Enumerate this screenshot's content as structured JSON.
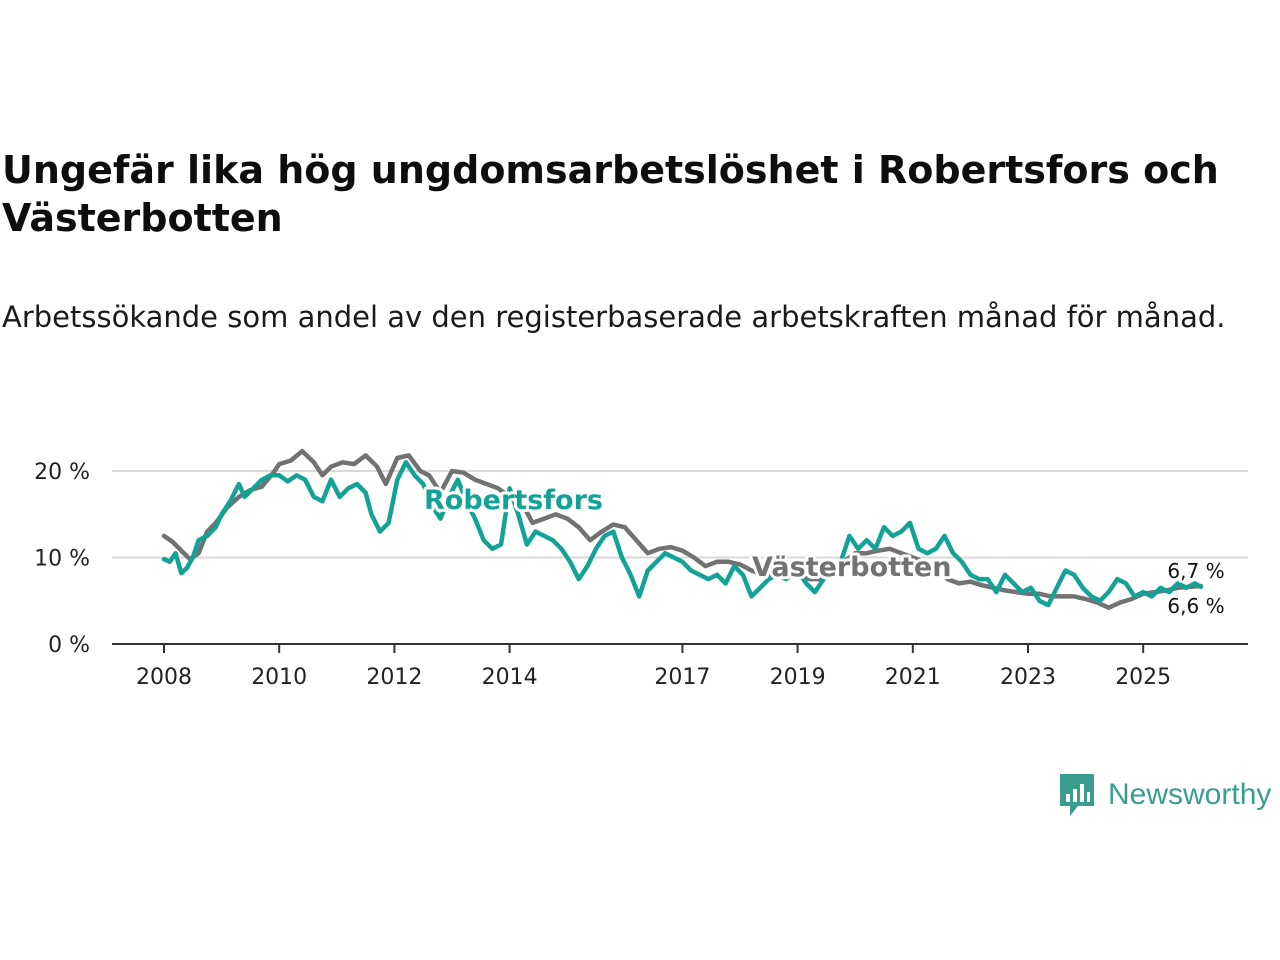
{
  "chart_data": {
    "type": "line",
    "title": "Ungefär lika hög ungdomsarbetslöshet i Robertsfors och Västerbotten",
    "subtitle": "Arbetssökande som andel av den registerbaserade arbetskraften månad för månad.",
    "xlabel": "",
    "ylabel": "",
    "ylim": [
      0,
      23
    ],
    "y_ticks": [
      {
        "value": 0,
        "label": "0 %"
      },
      {
        "value": 10,
        "label": "10 %"
      },
      {
        "value": 20,
        "label": "20 %"
      }
    ],
    "x_ticks": [
      {
        "value": 2008,
        "label": "2008"
      },
      {
        "value": 2010,
        "label": "2010"
      },
      {
        "value": 2012,
        "label": "2012"
      },
      {
        "value": 2014,
        "label": "2014"
      },
      {
        "value": 2017,
        "label": "2017"
      },
      {
        "value": 2019,
        "label": "2019"
      },
      {
        "value": 2021,
        "label": "2021"
      },
      {
        "value": 2023,
        "label": "2023"
      },
      {
        "value": 2025,
        "label": "2025"
      }
    ],
    "grid": true,
    "series": [
      {
        "name": "Västerbotten",
        "color": "#727272",
        "end_label": "6,7 %",
        "points": [
          [
            2008.0,
            12.5
          ],
          [
            2008.15,
            11.8
          ],
          [
            2008.3,
            10.8
          ],
          [
            2008.45,
            9.8
          ],
          [
            2008.6,
            10.5
          ],
          [
            2008.75,
            13.0
          ],
          [
            2008.9,
            14.0
          ],
          [
            2009.1,
            15.8
          ],
          [
            2009.3,
            17.0
          ],
          [
            2009.5,
            17.8
          ],
          [
            2009.7,
            18.2
          ],
          [
            2009.9,
            19.8
          ],
          [
            2010.0,
            20.8
          ],
          [
            2010.2,
            21.2
          ],
          [
            2010.4,
            22.3
          ],
          [
            2010.6,
            21.0
          ],
          [
            2010.75,
            19.5
          ],
          [
            2010.9,
            20.5
          ],
          [
            2011.1,
            21.0
          ],
          [
            2011.3,
            20.8
          ],
          [
            2011.5,
            21.8
          ],
          [
            2011.7,
            20.5
          ],
          [
            2011.85,
            18.5
          ],
          [
            2012.05,
            21.5
          ],
          [
            2012.25,
            21.8
          ],
          [
            2012.45,
            20.0
          ],
          [
            2012.6,
            19.5
          ],
          [
            2012.8,
            17.5
          ],
          [
            2013.0,
            20.0
          ],
          [
            2013.2,
            19.8
          ],
          [
            2013.4,
            19.0
          ],
          [
            2013.6,
            18.5
          ],
          [
            2013.8,
            18.0
          ],
          [
            2014.0,
            17.0
          ],
          [
            2014.2,
            16.5
          ],
          [
            2014.4,
            14.0
          ],
          [
            2014.6,
            14.5
          ],
          [
            2014.8,
            15.0
          ],
          [
            2015.0,
            14.5
          ],
          [
            2015.2,
            13.5
          ],
          [
            2015.4,
            12.0
          ],
          [
            2015.6,
            13.0
          ],
          [
            2015.8,
            13.8
          ],
          [
            2016.0,
            13.5
          ],
          [
            2016.2,
            12.0
          ],
          [
            2016.4,
            10.5
          ],
          [
            2016.6,
            11.0
          ],
          [
            2016.8,
            11.2
          ],
          [
            2017.0,
            10.8
          ],
          [
            2017.2,
            10.0
          ],
          [
            2017.4,
            9.0
          ],
          [
            2017.6,
            9.5
          ],
          [
            2017.8,
            9.5
          ],
          [
            2018.0,
            9.2
          ],
          [
            2018.2,
            8.5
          ],
          [
            2018.4,
            8.0
          ],
          [
            2018.6,
            8.0
          ],
          [
            2018.8,
            8.0
          ],
          [
            2019.0,
            7.8
          ],
          [
            2019.2,
            7.5
          ],
          [
            2019.4,
            7.5
          ],
          [
            2019.6,
            8.5
          ],
          [
            2019.8,
            9.5
          ],
          [
            2020.0,
            10.5
          ],
          [
            2020.2,
            10.5
          ],
          [
            2020.4,
            10.8
          ],
          [
            2020.6,
            11.0
          ],
          [
            2020.8,
            10.5
          ],
          [
            2021.0,
            10.0
          ],
          [
            2021.2,
            9.5
          ],
          [
            2021.4,
            9.0
          ],
          [
            2021.6,
            7.5
          ],
          [
            2021.8,
            7.0
          ],
          [
            2022.0,
            7.2
          ],
          [
            2022.2,
            6.8
          ],
          [
            2022.4,
            6.5
          ],
          [
            2022.6,
            6.2
          ],
          [
            2022.8,
            6.0
          ],
          [
            2023.0,
            5.8
          ],
          [
            2023.2,
            5.8
          ],
          [
            2023.4,
            5.5
          ],
          [
            2023.6,
            5.5
          ],
          [
            2023.8,
            5.5
          ],
          [
            2024.0,
            5.2
          ],
          [
            2024.2,
            4.8
          ],
          [
            2024.4,
            4.2
          ],
          [
            2024.6,
            4.8
          ],
          [
            2024.8,
            5.2
          ],
          [
            2025.0,
            5.8
          ],
          [
            2025.2,
            6.0
          ],
          [
            2025.4,
            6.2
          ],
          [
            2025.6,
            6.5
          ],
          [
            2025.8,
            6.6
          ],
          [
            2026.0,
            6.7
          ]
        ]
      },
      {
        "name": "Robertsfors",
        "color": "#13a396",
        "end_label": "6,6 %",
        "points": [
          [
            2008.0,
            9.8
          ],
          [
            2008.1,
            9.5
          ],
          [
            2008.2,
            10.5
          ],
          [
            2008.3,
            8.2
          ],
          [
            2008.4,
            8.8
          ],
          [
            2008.5,
            10.0
          ],
          [
            2008.6,
            12.0
          ],
          [
            2008.75,
            12.5
          ],
          [
            2008.9,
            13.5
          ],
          [
            2009.0,
            15.0
          ],
          [
            2009.15,
            16.5
          ],
          [
            2009.3,
            18.5
          ],
          [
            2009.4,
            17.0
          ],
          [
            2009.55,
            18.0
          ],
          [
            2009.7,
            19.0
          ],
          [
            2009.85,
            19.5
          ],
          [
            2010.0,
            19.5
          ],
          [
            2010.15,
            18.8
          ],
          [
            2010.3,
            19.5
          ],
          [
            2010.45,
            19.0
          ],
          [
            2010.6,
            17.0
          ],
          [
            2010.75,
            16.5
          ],
          [
            2010.9,
            19.0
          ],
          [
            2011.05,
            17.0
          ],
          [
            2011.2,
            18.0
          ],
          [
            2011.35,
            18.5
          ],
          [
            2011.5,
            17.5
          ],
          [
            2011.6,
            15.0
          ],
          [
            2011.75,
            13.0
          ],
          [
            2011.9,
            14.0
          ],
          [
            2012.05,
            19.0
          ],
          [
            2012.2,
            21.0
          ],
          [
            2012.35,
            19.5
          ],
          [
            2012.5,
            18.5
          ],
          [
            2012.65,
            16.0
          ],
          [
            2012.8,
            14.5
          ],
          [
            2012.95,
            17.0
          ],
          [
            2013.1,
            19.0
          ],
          [
            2013.25,
            16.5
          ],
          [
            2013.4,
            14.5
          ],
          [
            2013.55,
            12.0
          ],
          [
            2013.7,
            11.0
          ],
          [
            2013.85,
            11.5
          ],
          [
            2014.0,
            18.0
          ],
          [
            2014.15,
            15.0
          ],
          [
            2014.3,
            11.5
          ],
          [
            2014.45,
            13.0
          ],
          [
            2014.6,
            12.5
          ],
          [
            2014.75,
            12.0
          ],
          [
            2014.9,
            11.0
          ],
          [
            2015.05,
            9.5
          ],
          [
            2015.2,
            7.5
          ],
          [
            2015.35,
            9.0
          ],
          [
            2015.5,
            11.0
          ],
          [
            2015.65,
            12.5
          ],
          [
            2015.8,
            13.0
          ],
          [
            2015.95,
            10.0
          ],
          [
            2016.1,
            8.0
          ],
          [
            2016.25,
            5.5
          ],
          [
            2016.4,
            8.5
          ],
          [
            2016.55,
            9.5
          ],
          [
            2016.7,
            10.5
          ],
          [
            2016.85,
            10.0
          ],
          [
            2017.0,
            9.5
          ],
          [
            2017.15,
            8.5
          ],
          [
            2017.3,
            8.0
          ],
          [
            2017.45,
            7.5
          ],
          [
            2017.6,
            8.0
          ],
          [
            2017.75,
            7.0
          ],
          [
            2017.9,
            9.0
          ],
          [
            2018.05,
            8.0
          ],
          [
            2018.2,
            5.5
          ],
          [
            2018.35,
            6.5
          ],
          [
            2018.5,
            7.5
          ],
          [
            2018.65,
            8.0
          ],
          [
            2018.8,
            7.5
          ],
          [
            2019.0,
            8.5
          ],
          [
            2019.15,
            7.0
          ],
          [
            2019.3,
            6.0
          ],
          [
            2019.45,
            7.5
          ],
          [
            2019.6,
            8.5
          ],
          [
            2019.75,
            9.5
          ],
          [
            2019.9,
            12.5
          ],
          [
            2020.05,
            11.0
          ],
          [
            2020.2,
            12.0
          ],
          [
            2020.35,
            11.0
          ],
          [
            2020.5,
            13.5
          ],
          [
            2020.65,
            12.5
          ],
          [
            2020.8,
            13.0
          ],
          [
            2020.95,
            14.0
          ],
          [
            2021.1,
            11.0
          ],
          [
            2021.25,
            10.5
          ],
          [
            2021.4,
            11.0
          ],
          [
            2021.55,
            12.5
          ],
          [
            2021.7,
            10.5
          ],
          [
            2021.85,
            9.5
          ],
          [
            2022.0,
            8.0
          ],
          [
            2022.15,
            7.5
          ],
          [
            2022.3,
            7.5
          ],
          [
            2022.45,
            6.0
          ],
          [
            2022.6,
            8.0
          ],
          [
            2022.75,
            7.0
          ],
          [
            2022.9,
            6.0
          ],
          [
            2023.05,
            6.5
          ],
          [
            2023.2,
            5.0
          ],
          [
            2023.35,
            4.5
          ],
          [
            2023.5,
            6.5
          ],
          [
            2023.65,
            8.5
          ],
          [
            2023.8,
            8.0
          ],
          [
            2023.95,
            6.5
          ],
          [
            2024.1,
            5.5
          ],
          [
            2024.25,
            5.0
          ],
          [
            2024.4,
            6.0
          ],
          [
            2024.55,
            7.5
          ],
          [
            2024.7,
            7.0
          ],
          [
            2024.85,
            5.5
          ],
          [
            2025.0,
            6.0
          ],
          [
            2025.15,
            5.5
          ],
          [
            2025.3,
            6.5
          ],
          [
            2025.45,
            6.0
          ],
          [
            2025.6,
            7.0
          ],
          [
            2025.75,
            6.5
          ],
          [
            2025.9,
            7.0
          ],
          [
            2026.0,
            6.6
          ]
        ]
      }
    ]
  },
  "branding": {
    "logo_text": "Newsworthy",
    "logo_color": "#3a9d8f",
    "logo_icon": "bar-chart-speech-bubble-icon"
  }
}
